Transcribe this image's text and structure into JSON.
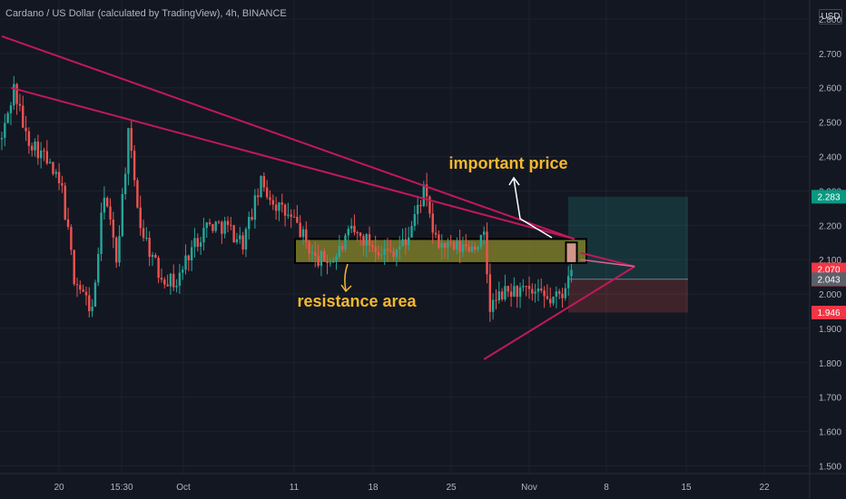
{
  "header": {
    "title": "Cardano / US Dollar (calculated by TradingView), 4h, BINANCE",
    "currency": "USD"
  },
  "colors": {
    "background": "#131722",
    "grid": "#1e222d",
    "axis_text": "#b2b5be",
    "candle_up": "#26a69a",
    "candle_down": "#ef5350",
    "trendline": "#c2185b",
    "annotation_text": "#f5b82e",
    "resistance_fill": "#8a8a2a",
    "target_zone": "#26a69a",
    "stop_zone": "#ef5350"
  },
  "chart_data": {
    "type": "candlestick",
    "symbol": "ADAUSD",
    "interval": "4h",
    "y_axis": {
      "ticks": [
        "2.800",
        "2.700",
        "2.600",
        "2.500",
        "2.400",
        "2.300",
        "2.200",
        "2.100",
        "2.000",
        "1.900",
        "1.800",
        "1.700",
        "1.600",
        "1.500"
      ],
      "range": [
        1.43,
        2.85
      ]
    },
    "x_axis": {
      "ticks": [
        "20",
        "15:30",
        "Oct",
        "11",
        "18",
        "25",
        "Nov",
        "8",
        "15",
        "22"
      ]
    },
    "trend": [
      [
        0,
        2.45
      ],
      [
        4,
        2.6
      ],
      [
        8,
        2.46
      ],
      [
        14,
        2.4
      ],
      [
        20,
        2.3
      ],
      [
        24,
        2.05
      ],
      [
        30,
        1.95
      ],
      [
        34,
        2.3
      ],
      [
        38,
        2.1
      ],
      [
        42,
        2.46
      ],
      [
        46,
        2.2
      ],
      [
        52,
        2.06
      ],
      [
        58,
        2.03
      ],
      [
        62,
        2.12
      ],
      [
        68,
        2.2
      ],
      [
        74,
        2.2
      ],
      [
        80,
        2.15
      ],
      [
        86,
        2.32
      ],
      [
        92,
        2.25
      ],
      [
        98,
        2.2
      ],
      [
        104,
        2.1
      ],
      [
        110,
        2.1
      ],
      [
        116,
        2.18
      ],
      [
        122,
        2.15
      ],
      [
        128,
        2.12
      ],
      [
        134,
        2.15
      ],
      [
        140,
        2.3
      ],
      [
        144,
        2.15
      ],
      [
        150,
        2.13
      ],
      [
        156,
        2.14
      ],
      [
        160,
        2.16
      ],
      [
        162,
        1.96
      ],
      [
        166,
        2.0
      ],
      [
        170,
        2.01
      ],
      [
        176,
        2.0
      ],
      [
        182,
        1.98
      ],
      [
        186,
        2.0
      ],
      [
        188,
        2.07
      ],
      [
        189,
        2.12
      ]
    ],
    "price_labels": [
      {
        "value": 2.283,
        "text": "2.283",
        "kind": "target"
      },
      {
        "value": 2.07,
        "text": "2.070",
        "sub": "03:22",
        "kind": "current"
      },
      {
        "value": 2.043,
        "text": "2.043",
        "kind": "entry"
      },
      {
        "value": 1.946,
        "text": "1.946",
        "kind": "stop"
      }
    ],
    "annotations": [
      {
        "text": "important price",
        "kind": "label"
      },
      {
        "text": "resistance area",
        "kind": "label"
      }
    ],
    "resistance_zone": {
      "from": 2.09,
      "to": 2.16
    },
    "trendlines": [
      {
        "name": "upper-trendline",
        "from": [
          0,
          2.75
        ],
        "to": [
          190,
          2.16
        ]
      },
      {
        "name": "middle-trendline",
        "from": [
          3,
          2.6
        ],
        "to": [
          190,
          2.16
        ]
      },
      {
        "name": "rising-support-line",
        "from": [
          160,
          1.81
        ],
        "to": [
          210,
          2.08
        ]
      },
      {
        "name": "wedge-upper-line",
        "from": [
          192,
          2.12
        ],
        "to": [
          210,
          2.08
        ]
      }
    ],
    "position": {
      "entry": 2.043,
      "target": 2.283,
      "stop": 1.946
    },
    "legend": "none",
    "grid": true
  }
}
